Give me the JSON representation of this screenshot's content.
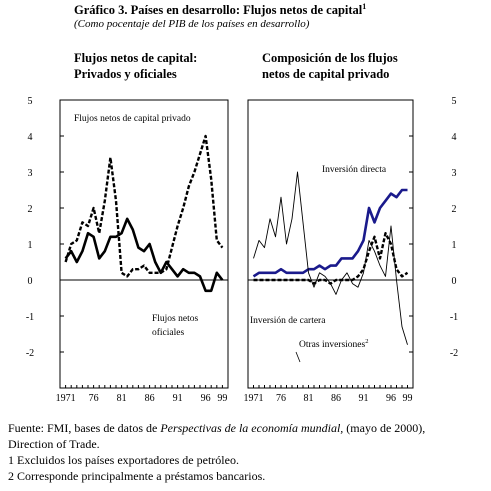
{
  "title": "Gráfico 3. Países en desarrollo: Flujos netos de capital",
  "title_note": "1",
  "subtitle": "(Como pocentaje del PIB de los países en desarrollo)",
  "chart_data": [
    {
      "type": "line",
      "title": "Flujos netos de capital: Privados y oficiales",
      "title_lines": [
        "Flujos netos de capital:",
        "Privados y oficiales"
      ],
      "ylim": [
        -3,
        5
      ],
      "yticks": [
        "5",
        "4",
        "3",
        "2",
        "1",
        "0",
        "-1",
        "-2"
      ],
      "xticks": [
        "1971",
        "76",
        "81",
        "86",
        "91",
        "96",
        "99"
      ],
      "series": [
        {
          "name": "Flujos netos de capital privado",
          "style": "dashed",
          "x": [
            1971,
            1972,
            1973,
            1974,
            1975,
            1976,
            1977,
            1978,
            1979,
            1980,
            1981,
            1982,
            1983,
            1984,
            1985,
            1986,
            1987,
            1988,
            1989,
            1990,
            1991,
            1992,
            1993,
            1994,
            1995,
            1996,
            1997,
            1998,
            1999
          ],
          "y": [
            0.5,
            1.0,
            1.1,
            1.6,
            1.5,
            2.0,
            1.3,
            2.2,
            3.4,
            2.2,
            0.2,
            0.1,
            0.3,
            0.3,
            0.4,
            0.2,
            0.2,
            0.2,
            0.3,
            0.9,
            1.5,
            2.0,
            2.6,
            3.0,
            3.5,
            4.0,
            2.8,
            1.1,
            0.9
          ]
        },
        {
          "name": "Flujos netos oficiales",
          "style": "solid",
          "x": [
            1971,
            1972,
            1973,
            1974,
            1975,
            1976,
            1977,
            1978,
            1979,
            1980,
            1981,
            1982,
            1983,
            1984,
            1985,
            1986,
            1987,
            1988,
            1989,
            1990,
            1991,
            1992,
            1993,
            1994,
            1995,
            1996,
            1997,
            1998,
            1999
          ],
          "y": [
            0.6,
            0.8,
            0.5,
            0.8,
            1.3,
            1.2,
            0.6,
            0.8,
            1.2,
            1.2,
            1.3,
            1.7,
            1.4,
            0.9,
            0.8,
            1.0,
            0.5,
            0.2,
            0.5,
            0.3,
            0.1,
            0.3,
            0.2,
            0.2,
            0.1,
            -0.3,
            -0.3,
            0.2,
            0.0
          ]
        }
      ]
    },
    {
      "type": "line",
      "title": "Composición de los flujos netos de capital privado",
      "title_lines": [
        "Composición de los flujos",
        "netos de capital privado"
      ],
      "ylim": [
        -3,
        5
      ],
      "yticks": [
        "5",
        "4",
        "3",
        "2",
        "1",
        "0",
        "-1",
        "-2"
      ],
      "xticks": [
        "1971",
        "76",
        "81",
        "86",
        "91",
        "96",
        "99"
      ],
      "series": [
        {
          "name": "Inversión directa",
          "style": "thick",
          "x": [
            1971,
            1972,
            1973,
            1974,
            1975,
            1976,
            1977,
            1978,
            1979,
            1980,
            1981,
            1982,
            1983,
            1984,
            1985,
            1986,
            1987,
            1988,
            1989,
            1990,
            1991,
            1992,
            1993,
            1994,
            1995,
            1996,
            1997,
            1998,
            1999
          ],
          "y": [
            0.1,
            0.2,
            0.2,
            0.2,
            0.2,
            0.3,
            0.2,
            0.2,
            0.2,
            0.2,
            0.3,
            0.3,
            0.4,
            0.3,
            0.4,
            0.4,
            0.6,
            0.6,
            0.6,
            0.8,
            1.1,
            2.0,
            1.6,
            2.0,
            2.2,
            2.4,
            2.3,
            2.5,
            2.5
          ]
        },
        {
          "name": "Inversión de cartera",
          "style": "dashed",
          "x": [
            1971,
            1972,
            1973,
            1974,
            1975,
            1976,
            1977,
            1978,
            1979,
            1980,
            1981,
            1982,
            1983,
            1984,
            1985,
            1986,
            1987,
            1988,
            1989,
            1990,
            1991,
            1992,
            1993,
            1994,
            1995,
            1996,
            1997,
            1998,
            1999
          ],
          "y": [
            0.0,
            0.0,
            0.0,
            0.0,
            0.0,
            0.0,
            0.0,
            0.0,
            0.0,
            0.0,
            0.0,
            -0.1,
            0.0,
            0.0,
            -0.1,
            0.0,
            0.0,
            0.0,
            0.0,
            0.1,
            0.3,
            0.8,
            1.2,
            0.6,
            1.3,
            1.0,
            0.3,
            0.1,
            0.2
          ]
        },
        {
          "name": "Otras inversiones",
          "name_note": "2",
          "style": "thin",
          "x": [
            1971,
            1972,
            1973,
            1974,
            1975,
            1976,
            1977,
            1978,
            1979,
            1980,
            1981,
            1982,
            1983,
            1984,
            1985,
            1986,
            1987,
            1988,
            1989,
            1990,
            1991,
            1992,
            1993,
            1994,
            1995,
            1996,
            1997,
            1998,
            1999
          ],
          "y": [
            0.6,
            1.1,
            0.9,
            1.7,
            1.2,
            2.3,
            1.0,
            1.7,
            3.0,
            1.6,
            0.2,
            -0.2,
            0.2,
            0.1,
            -0.1,
            -0.4,
            0.0,
            0.2,
            -0.1,
            -0.2,
            0.2,
            1.1,
            0.8,
            0.4,
            0.1,
            1.5,
            0.0,
            -1.3,
            -1.8
          ]
        }
      ]
    }
  ],
  "footnotes": {
    "source_prefix": "Fuente: FMI, bases de datos de ",
    "source_italic": "Perspectivas de la economía mundial,",
    "source_suffix": " (mayo de 2000),",
    "source_line2": "Direction of Trade.",
    "note1": "1 Excluidos los países exportadores de petróleo.",
    "note2": "2 Corresponde principalmente a préstamos bancarios."
  }
}
